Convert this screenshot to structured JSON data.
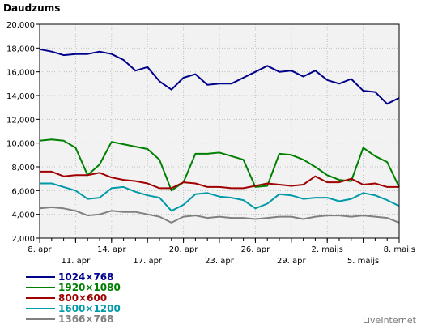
{
  "chart_data": {
    "type": "line",
    "ylabel": "Daudzums",
    "ylim": [
      2000,
      20000
    ],
    "yticks": [
      "2,000",
      "4,000",
      "6,000",
      "8,000",
      "10,000",
      "12,000",
      "14,000",
      "16,000",
      "18,000",
      "20,000"
    ],
    "ytick_values": [
      2000,
      4000,
      6000,
      8000,
      10000,
      12000,
      14000,
      16000,
      18000,
      20000
    ],
    "x_tick_labels": [
      {
        "day": 0,
        "label": "8. apr",
        "row": 0
      },
      {
        "day": 3,
        "label": "11. apr",
        "row": 1
      },
      {
        "day": 6,
        "label": "14. apr",
        "row": 0
      },
      {
        "day": 9,
        "label": "17. apr",
        "row": 1
      },
      {
        "day": 12,
        "label": "20. apr",
        "row": 0
      },
      {
        "day": 15,
        "label": "23. apr",
        "row": 1
      },
      {
        "day": 18,
        "label": "26. apr",
        "row": 0
      },
      {
        "day": 21,
        "label": "29. apr",
        "row": 1
      },
      {
        "day": 24,
        "label": "2. maijs",
        "row": 0
      },
      {
        "day": 27,
        "label": "5. maijs",
        "row": 1
      },
      {
        "day": 30,
        "label": "8. maijs",
        "row": 0
      }
    ],
    "grid": true,
    "legend_position": "bottom-left",
    "series": [
      {
        "name": "1024×768",
        "color": "#00008b",
        "values": [
          17900,
          17700,
          17400,
          17500,
          17500,
          17700,
          17500,
          17000,
          16100,
          16400,
          15200,
          14500,
          15500,
          15800,
          14900,
          15000,
          15000,
          15500,
          16000,
          16500,
          16000,
          16100,
          15600,
          16100,
          15300,
          15000,
          15400,
          14400,
          14300,
          13300,
          13800
        ]
      },
      {
        "name": "1920×1080",
        "color": "#008000",
        "values": [
          10200,
          10300,
          10200,
          9600,
          7300,
          8200,
          10100,
          9900,
          9700,
          9500,
          8600,
          6000,
          6700,
          9100,
          9100,
          9200,
          8900,
          8600,
          6300,
          6400,
          9100,
          9000,
          8600,
          8000,
          7300,
          6900,
          6800,
          9600,
          8900,
          8400,
          6300
        ]
      },
      {
        "name": "800×600",
        "color": "#a00000",
        "values": [
          7600,
          7600,
          7200,
          7300,
          7300,
          7500,
          7100,
          6900,
          6800,
          6600,
          6200,
          6200,
          6700,
          6600,
          6300,
          6300,
          6200,
          6200,
          6400,
          6600,
          6500,
          6400,
          6500,
          7200,
          6700,
          6700,
          7000,
          6500,
          6600,
          6300,
          6300
        ]
      },
      {
        "name": "1600×1200",
        "color": "#0099a8",
        "values": [
          6600,
          6600,
          6300,
          6000,
          5300,
          5400,
          6200,
          6300,
          5900,
          5600,
          5400,
          4300,
          4800,
          5700,
          5800,
          5500,
          5400,
          5200,
          4500,
          4900,
          5700,
          5600,
          5300,
          5400,
          5400,
          5100,
          5300,
          5800,
          5600,
          5200,
          4700
        ]
      },
      {
        "name": "1366×768",
        "color": "#808080",
        "values": [
          4500,
          4600,
          4500,
          4300,
          3900,
          4000,
          4300,
          4200,
          4200,
          4000,
          3800,
          3300,
          3800,
          3900,
          3700,
          3800,
          3700,
          3700,
          3600,
          3700,
          3800,
          3800,
          3600,
          3800,
          3900,
          3900,
          3800,
          3900,
          3800,
          3700,
          3300
        ]
      }
    ]
  },
  "branding": {
    "text": "LiveInternet"
  }
}
